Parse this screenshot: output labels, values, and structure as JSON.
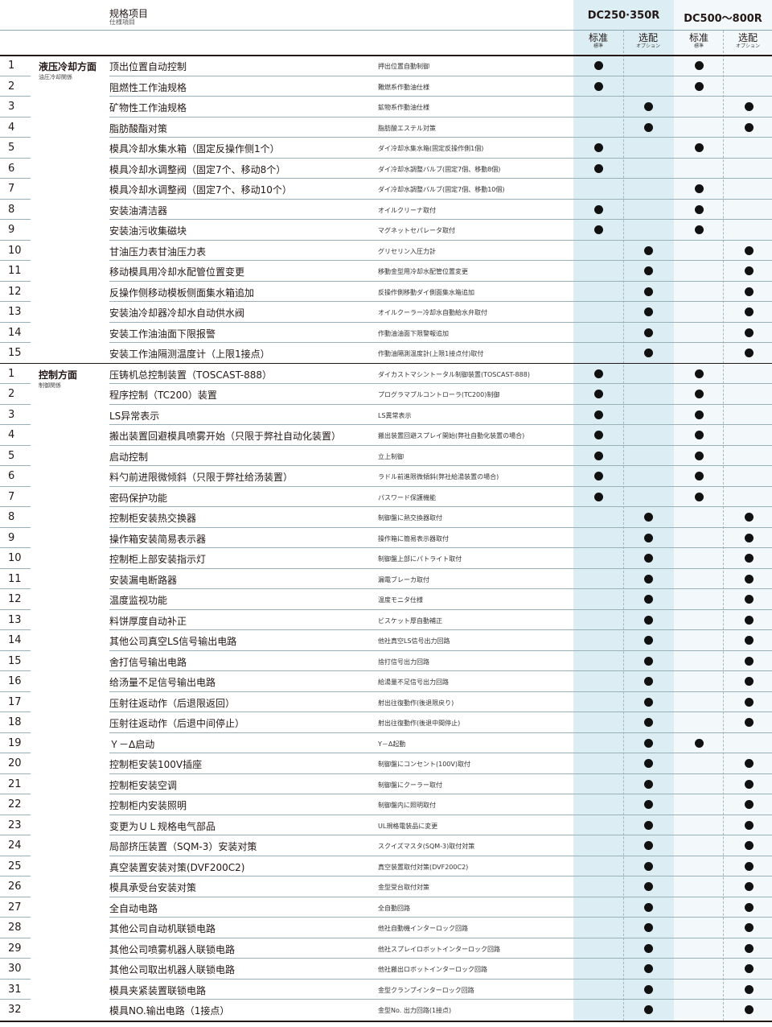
{
  "header": {
    "title_zh": "规格项目",
    "title_jp": "仕様項目",
    "model_a": "DC250·350R",
    "model_b": "DC500～800R",
    "std_zh": "标准",
    "std_jp": "標準",
    "opt_zh": "选配",
    "opt_jp": "オプション"
  },
  "sections": [
    {
      "category_zh": "液压冷却方面",
      "category_jp": "油圧冷却関係",
      "rows": [
        {
          "num": "1",
          "item": "顶出位置自动控制",
          "jp": "押出位置自動制御",
          "marks": [
            "std",
            "std"
          ]
        },
        {
          "num": "2",
          "item": "阻燃性工作油规格",
          "jp": "難燃系作動油仕様",
          "marks": [
            "std",
            "std"
          ]
        },
        {
          "num": "3",
          "item": "矿物性工作油规格",
          "jp": "鉱物系作動油仕様",
          "marks": [
            "opt",
            "opt"
          ]
        },
        {
          "num": "4",
          "item": "脂肪酸酯对策",
          "jp": "脂肪酸エステル対策",
          "marks": [
            "opt",
            "opt"
          ]
        },
        {
          "num": "5",
          "item": "模具冷却水集水箱（固定反操作侧1个）",
          "jp": "ダイ冷却水集水箱(固定反操作側1個)",
          "marks": [
            "std",
            "std"
          ]
        },
        {
          "num": "6",
          "item": "模具冷却水调整阀（固定7个、移动8个）",
          "jp": "ダイ冷却水調整バルブ(固定7個、移動8個)",
          "marks": [
            "std",
            ""
          ]
        },
        {
          "num": "7",
          "item": "模具冷却水调整阀（固定7个、移动10个）",
          "jp": "ダイ冷却水調整バルブ(固定7個、移動10個)",
          "marks": [
            "",
            "std"
          ]
        },
        {
          "num": "8",
          "item": "安装油清洁器",
          "jp": "オイルクリーナ取付",
          "marks": [
            "std",
            "std"
          ]
        },
        {
          "num": "9",
          "item": "安装油污收集磁块",
          "jp": "マグネットセパレータ取付",
          "marks": [
            "std",
            "std"
          ]
        },
        {
          "num": "10",
          "item": "甘油压力表甘油压力表",
          "jp": "グリセリン入圧力計",
          "marks": [
            "opt",
            "opt"
          ]
        },
        {
          "num": "11",
          "item": "移动模具用冷却水配管位置变更",
          "jp": "移動金型用冷却水配管位置変更",
          "marks": [
            "opt",
            "opt"
          ]
        },
        {
          "num": "12",
          "item": "反操作侧移动模板侧面集水箱追加",
          "jp": "反操作側移動ダイ側面集水箱追加",
          "marks": [
            "opt",
            "opt"
          ]
        },
        {
          "num": "13",
          "item": "安装油冷却器冷却水自动供水阀",
          "jp": "オイルクーラー冷却水自動給水弁取付",
          "marks": [
            "opt",
            "opt"
          ]
        },
        {
          "num": "14",
          "item": "安装工作油油面下限报警",
          "jp": "作動油油面下限警報追加",
          "marks": [
            "opt",
            "opt"
          ]
        },
        {
          "num": "15",
          "item": "安装工作油隔测温度计（上限1接点）",
          "jp": "作動油隔測温度計(上限1接点付)取付",
          "marks": [
            "opt",
            "opt"
          ]
        }
      ]
    },
    {
      "category_zh": "控制方面",
      "category_jp": "制御関係",
      "rows": [
        {
          "num": "1",
          "item": "压铸机总控制装置（TOSCAST-888）",
          "jp": "ダイカストマシントータル制御装置(TOSCAST-888)",
          "marks": [
            "std",
            "std"
          ]
        },
        {
          "num": "2",
          "item": "程序控制（TC200）装置",
          "jp": "プログラマブルコントローラ(TC200)制御",
          "marks": [
            "std",
            "std"
          ]
        },
        {
          "num": "3",
          "item": "LS异常表示",
          "jp": "LS異常表示",
          "marks": [
            "std",
            "std"
          ]
        },
        {
          "num": "4",
          "item": "搬出装置回避模具喷雾开始（只限于弊社自动化装置）",
          "jp": "搬出装置回避スプレイ開始(弊社自動化装置の場合)",
          "marks": [
            "std",
            "std"
          ]
        },
        {
          "num": "5",
          "item": "启动控制",
          "jp": "立上制御",
          "marks": [
            "std",
            "std"
          ]
        },
        {
          "num": "6",
          "item": "料勺前进限微倾斜（只限于弊社给汤装置）",
          "jp": "ラドル前進限微傾斜(弊社給湯装置の場合)",
          "marks": [
            "std",
            "std"
          ]
        },
        {
          "num": "7",
          "item": "密码保护功能",
          "jp": "パスワード保護機能",
          "marks": [
            "std",
            "std"
          ]
        },
        {
          "num": "8",
          "item": "控制柜安装热交换器",
          "jp": "制御盤に熱交換器取付",
          "marks": [
            "opt",
            "opt"
          ]
        },
        {
          "num": "9",
          "item": "操作箱安装简易表示器",
          "jp": "操作箱に簡易表示器取付",
          "marks": [
            "opt",
            "opt"
          ]
        },
        {
          "num": "10",
          "item": "控制柜上部安装指示灯",
          "jp": "制御盤上部にパトライト取付",
          "marks": [
            "opt",
            "opt"
          ]
        },
        {
          "num": "11",
          "item": "安装漏电断路器",
          "jp": "漏電ブレーカ取付",
          "marks": [
            "opt",
            "opt"
          ]
        },
        {
          "num": "12",
          "item": "温度监视功能",
          "jp": "温度モニタ仕様",
          "marks": [
            "opt",
            "opt"
          ]
        },
        {
          "num": "13",
          "item": "料饼厚度自动补正",
          "jp": "ビスケット厚自動補正",
          "marks": [
            "opt",
            "opt"
          ]
        },
        {
          "num": "14",
          "item": "其他公司真空LS信号输出电路",
          "jp": "他社真空LS信号出力回路",
          "marks": [
            "opt",
            "opt"
          ]
        },
        {
          "num": "15",
          "item": "舍打信号输出电路",
          "jp": "捨打信号出力回路",
          "marks": [
            "opt",
            "opt"
          ]
        },
        {
          "num": "16",
          "item": "给汤量不足信号输出电路",
          "jp": "給湯量不足信号出力回路",
          "marks": [
            "opt",
            "opt"
          ]
        },
        {
          "num": "17",
          "item": "压射往返动作（后退限返回）",
          "jp": "射出往復動作(後退限戻り)",
          "marks": [
            "opt",
            "opt"
          ]
        },
        {
          "num": "18",
          "item": "压射往返动作（后退中间停止）",
          "jp": "射出往復動作(後退中間停止)",
          "marks": [
            "opt",
            "opt"
          ]
        },
        {
          "num": "19",
          "item": "Ｙ－Δ启动",
          "jp": "Y－Δ起動",
          "marks": [
            "opt",
            "std"
          ]
        },
        {
          "num": "20",
          "item": "控制柜安装100V插座",
          "jp": "制御盤にコンセント(100V)取付",
          "marks": [
            "opt",
            "opt"
          ]
        },
        {
          "num": "21",
          "item": "控制柜安装空调",
          "jp": "制御盤にクーラー取付",
          "marks": [
            "opt",
            "opt"
          ]
        },
        {
          "num": "22",
          "item": "控制柜内安装照明",
          "jp": "制御盤内に照明取付",
          "marks": [
            "opt",
            "opt"
          ]
        },
        {
          "num": "23",
          "item": "变更为ＵＬ规格电气部品",
          "jp": "UL規格電装品に変更",
          "marks": [
            "opt",
            "opt"
          ]
        },
        {
          "num": "24",
          "item": "局部挤压装置（SQM-3）安装对策",
          "jp": "スクイズマスタ(SQM-3)取付対策",
          "marks": [
            "opt",
            "opt"
          ]
        },
        {
          "num": "25",
          "item": "真空装置安装对策(DVF200C2)",
          "jp": "真空装置取付対策(DVF200C2)",
          "marks": [
            "opt",
            "opt"
          ]
        },
        {
          "num": "26",
          "item": "模具承受台安装对策",
          "jp": "金型受台取付対策",
          "marks": [
            "opt",
            "opt"
          ]
        },
        {
          "num": "27",
          "item": "全自动电路",
          "jp": "全自動回路",
          "marks": [
            "opt",
            "opt"
          ]
        },
        {
          "num": "28",
          "item": "其他公司自动机联锁电路",
          "jp": "他社自動機インターロック回路",
          "marks": [
            "opt",
            "opt"
          ]
        },
        {
          "num": "29",
          "item": "其他公司喷雾机器人联锁电路",
          "jp": "他社スプレイロボットインターロック回路",
          "marks": [
            "opt",
            "opt"
          ]
        },
        {
          "num": "30",
          "item": "其他公司取出机器人联锁电路",
          "jp": "他社搬出ロボットインターロック回路",
          "marks": [
            "opt",
            "opt"
          ]
        },
        {
          "num": "31",
          "item": "模具夹紧装置联锁电路",
          "jp": "金型クランプインターロック回路",
          "marks": [
            "opt",
            "opt"
          ]
        },
        {
          "num": "32",
          "item": "模具NO.输出电路（1接点）",
          "jp": "金型No. 出力回路(1接点)",
          "marks": [
            "opt",
            "opt"
          ]
        }
      ]
    }
  ]
}
